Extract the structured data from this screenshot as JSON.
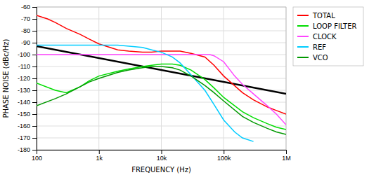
{
  "chart_data": {
    "type": "line",
    "x_label": "FREQUENCY (Hz)",
    "y_label": "PHASE NOISE (dBc/Hz)",
    "log": "x",
    "grid": true,
    "legend": "upper right",
    "xlim": [
      100,
      1000000
    ],
    "ylim": [
      -180,
      -60
    ],
    "xticks": [
      100,
      {
        "value": 1000,
        "label": "1k"
      },
      {
        "value": 10000,
        "label": "10k"
      },
      {
        "value": 100000,
        "label": "100k"
      },
      {
        "value": 1000000,
        "label": "1M"
      }
    ],
    "yticks": [
      -180,
      -170,
      -160,
      -150,
      -140,
      -130,
      -120,
      -110,
      -100,
      -90,
      -80,
      -70,
      -60
    ],
    "series": [
      {
        "color": "#000000",
        "x": [
          100,
          1000000
        ],
        "values": [
          -93,
          -133
        ]
      },
      {
        "name": "TOTAL",
        "color": "#ff0000",
        "x": [
          100,
          150,
          200,
          300,
          500,
          700,
          1000,
          2000,
          3000,
          5000,
          7000,
          10000,
          15000,
          20000,
          30000,
          50000,
          70000,
          100000,
          200000,
          300000,
          500000,
          700000,
          1000000
        ],
        "values": [
          -67,
          -70,
          -73,
          -78,
          -83,
          -87,
          -91,
          -96,
          -97,
          -98,
          -98,
          -97,
          -97,
          -97,
          -99,
          -102,
          -109,
          -118,
          -132,
          -138,
          -144,
          -147,
          -150
        ]
      },
      {
        "name": "LOOP FILTER",
        "color": "#00dd00",
        "x": [
          100,
          200,
          300,
          500,
          700,
          1000,
          2000,
          3000,
          5000,
          7000,
          10000,
          15000,
          20000,
          30000,
          50000,
          70000,
          100000,
          200000,
          300000,
          500000,
          700000,
          1000000
        ],
        "values": [
          -124,
          -130,
          -132,
          -127,
          -122,
          -118,
          -114,
          -112,
          -110,
          -109,
          -108,
          -108,
          -109,
          -113,
          -121,
          -128,
          -136,
          -148,
          -153,
          -158,
          -161,
          -163
        ]
      },
      {
        "name": "CLOCK",
        "color": "#ff44ff",
        "x": [
          100,
          500,
          1000,
          2000,
          5000,
          10000,
          20000,
          50000,
          60000,
          70000,
          100000,
          150000,
          200000,
          300000,
          500000,
          700000,
          1000000
        ],
        "values": [
          -100,
          -100,
          -100,
          -100,
          -100,
          -100,
          -100,
          -100,
          -100,
          -101,
          -106,
          -118,
          -125,
          -133,
          -143,
          -150,
          -159
        ]
      },
      {
        "name": "REF",
        "color": "#00ccff",
        "x": [
          100,
          500,
          1000,
          2000,
          5000,
          7000,
          10000,
          15000,
          20000,
          30000,
          50000,
          70000,
          100000,
          150000,
          200000,
          300000
        ],
        "values": [
          -92,
          -92,
          -92,
          -92,
          -94,
          -96,
          -98,
          -102,
          -107,
          -117,
          -130,
          -142,
          -155,
          -165,
          -170,
          -173
        ]
      },
      {
        "name": "VCO",
        "color": "#009900",
        "x": [
          100,
          200,
          300,
          500,
          700,
          1000,
          2000,
          3000,
          5000,
          7000,
          10000,
          15000,
          20000,
          30000,
          50000,
          70000,
          100000,
          200000,
          300000,
          500000,
          700000,
          1000000
        ],
        "values": [
          -143,
          -137,
          -133,
          -127,
          -123,
          -120,
          -115,
          -113,
          -111,
          -110,
          -110,
          -111,
          -113,
          -118,
          -126,
          -132,
          -139,
          -152,
          -157,
          -162,
          -165,
          -167
        ]
      }
    ]
  }
}
